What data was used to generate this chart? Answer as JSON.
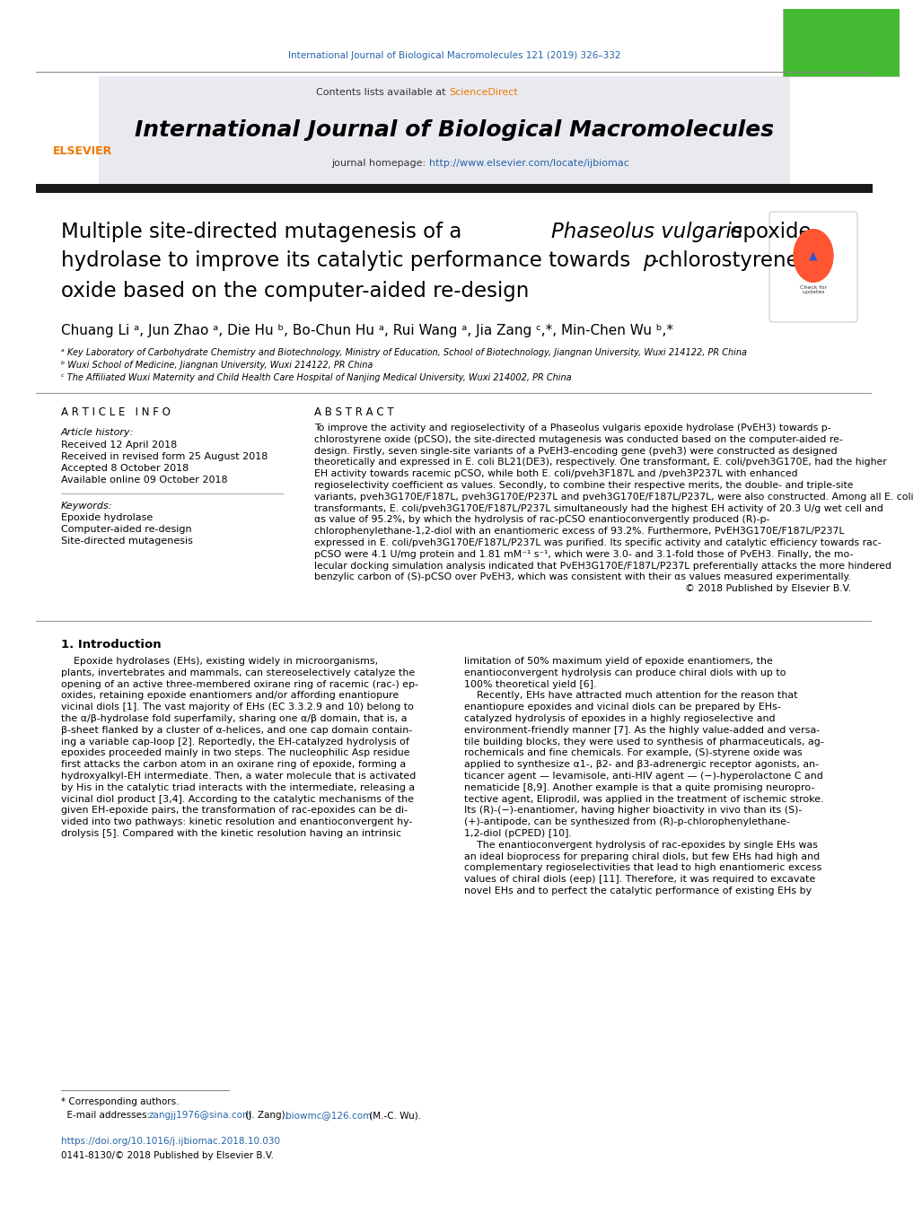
{
  "page_width": 9.92,
  "page_height": 13.23,
  "bg_color": "#ffffff",
  "journal_ref_text": "International Journal of Biological Macromolecules 121 (2019) 326–332",
  "journal_ref_color": "#2563a8",
  "journal_name": "International Journal of Biological Macromolecules",
  "contents_text": "Contents lists available at ",
  "sciencedirect_text": "ScienceDirect",
  "sciencedirect_color": "#f07800",
  "journal_homepage_text": "journal homepage: ",
  "journal_url": "http://www.elsevier.com/locate/ijbiomac",
  "journal_url_color": "#2563a8",
  "header_bg": "#e8eaf0",
  "article_info_label": "A R T I C L E   I N F O",
  "abstract_label": "A B S T R A C T",
  "article_history_label": "Article history:",
  "received_text": "Received 12 April 2018",
  "revised_text": "Received in revised form 25 August 2018",
  "accepted_text": "Accepted 8 October 2018",
  "online_text": "Available online 09 October 2018",
  "keywords_label": "Keywords:",
  "keyword1": "Epoxide hydrolase",
  "keyword2": "Computer-aided re-design",
  "keyword3": "Site-directed mutagenesis",
  "section1_title": "1. Introduction",
  "doi_text": "https://doi.org/10.1016/j.ijbiomac.2018.10.030",
  "doi_color": "#2563a8",
  "copyright_text": "0141-8130/© 2018 Published by Elsevier B.V.",
  "elsevier_orange": "#f07800",
  "title_color": "#000000",
  "text_color": "#000000",
  "abstract_lines": [
    "To improve the activity and regioselectivity of a Phaseolus vulgaris epoxide hydrolase (PvEH3) towards p-",
    "chlorostyrene oxide (pCSO), the site-directed mutagenesis was conducted based on the computer-aided re-",
    "design. Firstly, seven single-site variants of a PvEH3-encoding gene (pveh3) were constructed as designed",
    "theoretically and expressed in E. coli BL21(DE3), respectively. One transformant, E. coli/pveh3G170E, had the higher",
    "EH activity towards racemic pCSO, while both E. coli/pveh3F187L and /pveh3P237L with enhanced",
    "regioselectivity coefficient αs values. Secondly, to combine their respective merits, the double- and triple-site",
    "variants, pveh3G170E/F187L, pveh3G170E/P237L and pveh3G170E/F187L/P237L, were also constructed. Among all E. coli",
    "transformants, E. coli/pveh3G170E/F187L/P237L simultaneously had the highest EH activity of 20.3 U/g wet cell and",
    "αs value of 95.2%, by which the hydrolysis of rac-pCSO enantioconvergently produced (R)-p-",
    "chlorophenylethane-1,2-diol with an enantiomeric excess of 93.2%. Furthermore, PvEH3G170E/F187L/P237L",
    "expressed in E. coli/pveh3G170E/F187L/P237L was purified. Its specific activity and catalytic efficiency towards rac-",
    "pCSO were 4.1 U/mg protein and 1.81 mM⁻¹ s⁻¹, which were 3.0- and 3.1-fold those of PvEH3. Finally, the mo-",
    "lecular docking simulation analysis indicated that PvEH3G170E/F187L/P237L preferentially attacks the more hindered",
    "benzylic carbon of (S)-pCSO over PvEH3, which was consistent with their αs values measured experimentally.",
    "© 2018 Published by Elsevier B.V."
  ],
  "col1_lines": [
    "    Epoxide hydrolases (EHs), existing widely in microorganisms,",
    "plants, invertebrates and mammals, can stereoselectively catalyze the",
    "opening of an active three-membered oxirane ring of racemic (rac-) ep-",
    "oxides, retaining epoxide enantiomers and/or affording enantiopure",
    "vicinal diols [1]. The vast majority of EHs (EC 3.3.2.9 and 10) belong to",
    "the α/β-hydrolase fold superfamily, sharing one α/β domain, that is, a",
    "β-sheet flanked by a cluster of α-helices, and one cap domain contain-",
    "ing a variable cap-loop [2]. Reportedly, the EH-catalyzed hydrolysis of",
    "epoxides proceeded mainly in two steps. The nucleophilic Asp residue",
    "first attacks the carbon atom in an oxirane ring of epoxide, forming a",
    "hydroxyalkyl-EH intermediate. Then, a water molecule that is activated",
    "by His in the catalytic triad interacts with the intermediate, releasing a",
    "vicinal diol product [3,4]. According to the catalytic mechanisms of the",
    "given EH-epoxide pairs, the transformation of rac-epoxides can be di-",
    "vided into two pathways: kinetic resolution and enantioconvergent hy-",
    "drolysis [5]. Compared with the kinetic resolution having an intrinsic"
  ],
  "col2_lines": [
    "limitation of 50% maximum yield of epoxide enantiomers, the",
    "enantioconvergent hydrolysis can produce chiral diols with up to",
    "100% theoretical yield [6].",
    "    Recently, EHs have attracted much attention for the reason that",
    "enantiopure epoxides and vicinal diols can be prepared by EHs-",
    "catalyzed hydrolysis of epoxides in a highly regioselective and",
    "environment-friendly manner [7]. As the highly value-added and versa-",
    "tile building blocks, they were used to synthesis of pharmaceuticals, ag-",
    "rochemicals and fine chemicals. For example, (S)-styrene oxide was",
    "applied to synthesize α1-, β2- and β3-adrenergic receptor agonists, an-",
    "ticancer agent — levamisole, anti-HIV agent — (−)-hyperolactone C and",
    "nematicide [8,9]. Another example is that a quite promising neuropro-",
    "tective agent, Eliprodil, was applied in the treatment of ischemic stroke.",
    "Its (R)-(−)-enantiomer, having higher bioactivity in vivo than its (S)-",
    "(+)-antipode, can be synthesized from (R)-p-chlorophenylethane-",
    "1,2-diol (pCPED) [10].",
    "    The enantioconvergent hydrolysis of rac-epoxides by single EHs was",
    "an ideal bioprocess for preparing chiral diols, but few EHs had high and",
    "complementary regioselectivities that lead to high enantiomeric excess",
    "values of chiral diols (eep) [11]. Therefore, it was required to excavate",
    "novel EHs and to perfect the catalytic performance of existing EHs by"
  ]
}
